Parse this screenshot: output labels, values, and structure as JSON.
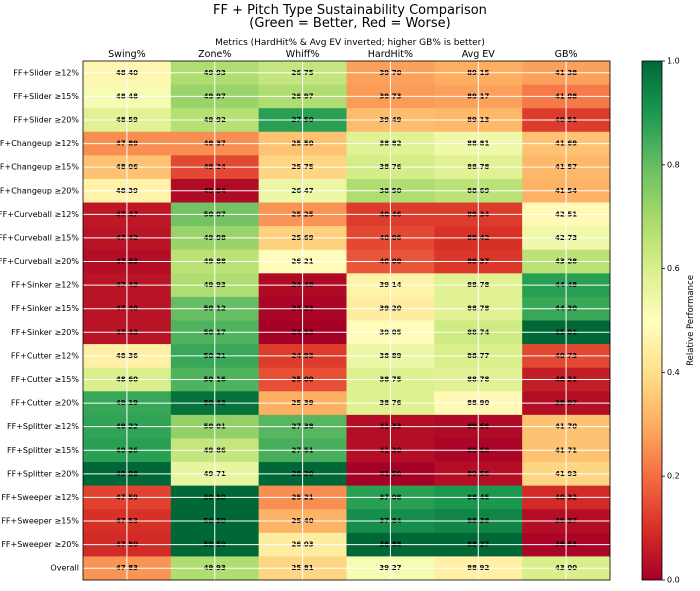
{
  "chart_data": {
    "type": "heatmap",
    "title": "FF + Pitch Type Sustainability Comparison",
    "subtitle": "(Green = Better, Red = Worse)",
    "xlabel": "Metrics (HardHit% & Avg EV inverted; higher GB% is better)",
    "columns": [
      "Swing%",
      "Zone%",
      "Whiff%",
      "HardHit%",
      "Avg EV",
      "GB%"
    ],
    "rows": [
      "FF+Slider ≥12%",
      "FF+Slider ≥15%",
      "FF+Slider ≥20%",
      "FF+Changeup ≥12%",
      "FF+Changeup ≥15%",
      "FF+Changeup ≥20%",
      "FF+Curveball ≥12%",
      "FF+Curveball ≥15%",
      "FF+Curveball ≥20%",
      "FF+Sinker ≥12%",
      "FF+Sinker ≥15%",
      "FF+Sinker ≥20%",
      "FF+Cutter ≥12%",
      "FF+Cutter ≥15%",
      "FF+Cutter ≥20%",
      "FF+Splitter ≥12%",
      "FF+Splitter ≥15%",
      "FF+Splitter ≥20%",
      "FF+Sweeper ≥12%",
      "FF+Sweeper ≥15%",
      "FF+Sweeper ≥20%",
      "Overall"
    ],
    "values": [
      [
        48.4,
        49.93,
        26.75,
        39.7,
        89.15,
        41.38
      ],
      [
        48.48,
        49.97,
        26.97,
        39.73,
        89.17,
        41.08
      ],
      [
        48.59,
        49.92,
        27.5,
        39.49,
        89.13,
        40.51
      ],
      [
        47.89,
        49.37,
        25.5,
        38.82,
        88.81,
        41.69
      ],
      [
        48.06,
        49.24,
        25.75,
        38.76,
        88.78,
        41.57
      ],
      [
        48.39,
        49.04,
        26.47,
        38.5,
        88.69,
        41.54
      ],
      [
        47.47,
        50.07,
        25.25,
        40.46,
        89.34,
        42.51
      ],
      [
        47.42,
        49.98,
        25.69,
        40.06,
        89.42,
        42.73
      ],
      [
        47.33,
        49.88,
        26.21,
        40.0,
        89.37,
        43.28
      ],
      [
        47.43,
        49.93,
        24.49,
        39.14,
        88.78,
        44.48
      ],
      [
        47.4,
        50.12,
        24.23,
        39.2,
        88.78,
        44.3
      ],
      [
        47.43,
        50.17,
        24.13,
        39.05,
        88.74,
        45.01
      ],
      [
        48.36,
        50.21,
        24.93,
        38.89,
        88.77,
        40.73
      ],
      [
        48.6,
        50.16,
        25.0,
        38.75,
        88.78,
        40.21
      ],
      [
        49.19,
        50.43,
        25.39,
        38.76,
        88.9,
        39.97
      ],
      [
        49.22,
        50.01,
        27.38,
        41.33,
        89.66,
        41.7
      ],
      [
        49.26,
        49.86,
        27.51,
        41.3,
        89.68,
        41.71
      ],
      [
        49.98,
        49.71,
        28.2,
        41.5,
        89.55,
        41.93
      ],
      [
        47.59,
        50.5,
        25.21,
        37.08,
        88.45,
        40.32
      ],
      [
        47.53,
        50.5,
        25.4,
        37.84,
        88.38,
        39.97
      ],
      [
        47.5,
        50.5,
        26.03,
        36.88,
        88.27,
        39.53
      ],
      [
        47.83,
        49.93,
        25.81,
        39.27,
        88.92,
        43.0
      ]
    ],
    "performance": [
      [
        0.47,
        0.68,
        0.64,
        0.28,
        0.3,
        0.28
      ],
      [
        0.52,
        0.72,
        0.68,
        0.27,
        0.28,
        0.22
      ],
      [
        0.58,
        0.67,
        0.88,
        0.33,
        0.32,
        0.12
      ],
      [
        0.25,
        0.25,
        0.34,
        0.58,
        0.54,
        0.34
      ],
      [
        0.34,
        0.14,
        0.38,
        0.61,
        0.58,
        0.32
      ],
      [
        0.46,
        0.02,
        0.55,
        0.68,
        0.66,
        0.31
      ],
      [
        0.05,
        0.78,
        0.26,
        0.12,
        0.12,
        0.48
      ],
      [
        0.04,
        0.72,
        0.37,
        0.14,
        0.1,
        0.54
      ],
      [
        0.03,
        0.66,
        0.49,
        0.16,
        0.11,
        0.66
      ],
      [
        0.04,
        0.68,
        0.02,
        0.46,
        0.58,
        0.88
      ],
      [
        0.04,
        0.8,
        0.01,
        0.44,
        0.58,
        0.86
      ],
      [
        0.04,
        0.83,
        0.0,
        0.49,
        0.62,
        1.0
      ],
      [
        0.45,
        0.86,
        0.12,
        0.55,
        0.6,
        0.14
      ],
      [
        0.6,
        0.83,
        0.15,
        0.59,
        0.58,
        0.06
      ],
      [
        0.86,
        0.98,
        0.3,
        0.59,
        0.48,
        0.03
      ],
      [
        0.87,
        0.73,
        0.82,
        0.03,
        0.02,
        0.34
      ],
      [
        0.88,
        0.64,
        0.84,
        0.03,
        0.01,
        0.34
      ],
      [
        1.0,
        0.56,
        1.0,
        0.0,
        0.03,
        0.38
      ],
      [
        0.13,
        1.0,
        0.25,
        0.88,
        0.9,
        0.09
      ],
      [
        0.1,
        1.0,
        0.31,
        0.92,
        0.94,
        0.03
      ],
      [
        0.09,
        1.0,
        0.44,
        1.0,
        1.0,
        0.01
      ],
      [
        0.26,
        0.68,
        0.38,
        0.52,
        0.45,
        0.6
      ]
    ],
    "colorbar": {
      "label": "Relative Performance",
      "min": 0.0,
      "max": 1.0,
      "ticks": [
        "0.0",
        "0.2",
        "0.4",
        "0.6",
        "0.8",
        "1.0"
      ],
      "colormap": "RdYlGn"
    }
  }
}
